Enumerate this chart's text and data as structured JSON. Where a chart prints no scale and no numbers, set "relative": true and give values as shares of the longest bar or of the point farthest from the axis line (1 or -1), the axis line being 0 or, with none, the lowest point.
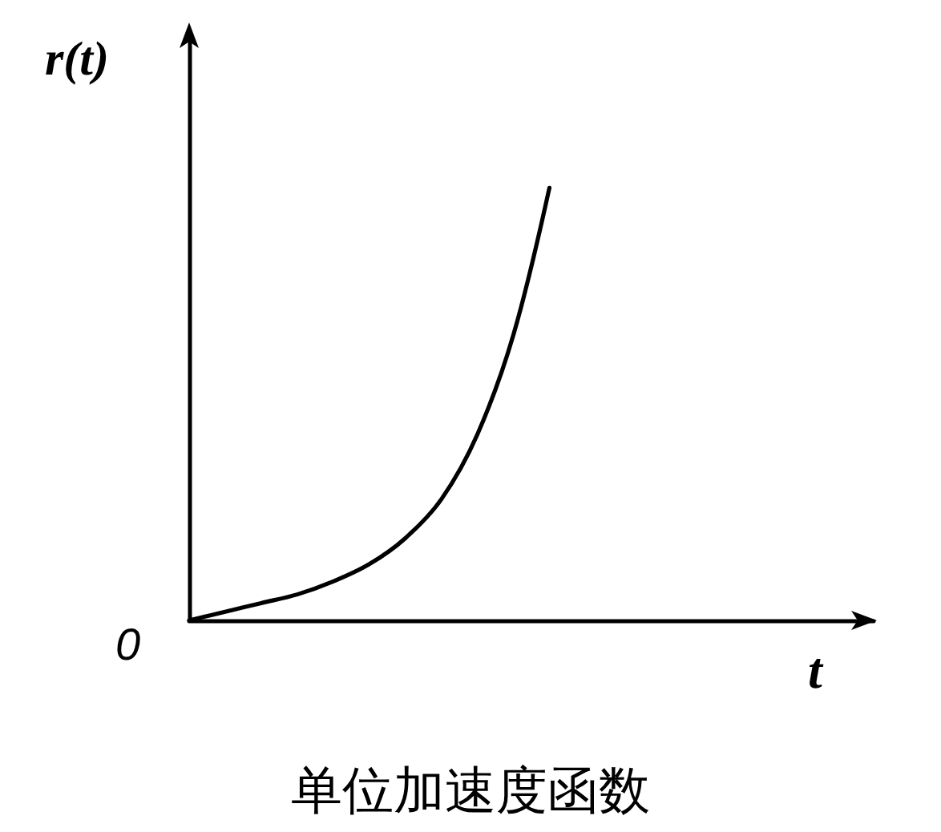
{
  "chart_data": {
    "type": "line",
    "title": "单位加速度函数",
    "xlabel": "t",
    "ylabel": "r(t)",
    "annotations": [
      "0"
    ],
    "categories": [
      null,
      null,
      null,
      null,
      null,
      null,
      null,
      null,
      null,
      null,
      null,
      null,
      null,
      null,
      null,
      null,
      null,
      null,
      null,
      null
    ],
    "series": [
      {
        "color": "#000000",
        "values": [
          0,
          0.02,
          0.04,
          0.06,
          0.09,
          0.13,
          0.19,
          0.28,
          0.43,
          0.66,
          1,
          null,
          null,
          null,
          null,
          null,
          null,
          null,
          null,
          null
        ]
      }
    ],
    "relative": true,
    "marker": "none",
    "line_style": "solid",
    "tick_labels": false
  }
}
